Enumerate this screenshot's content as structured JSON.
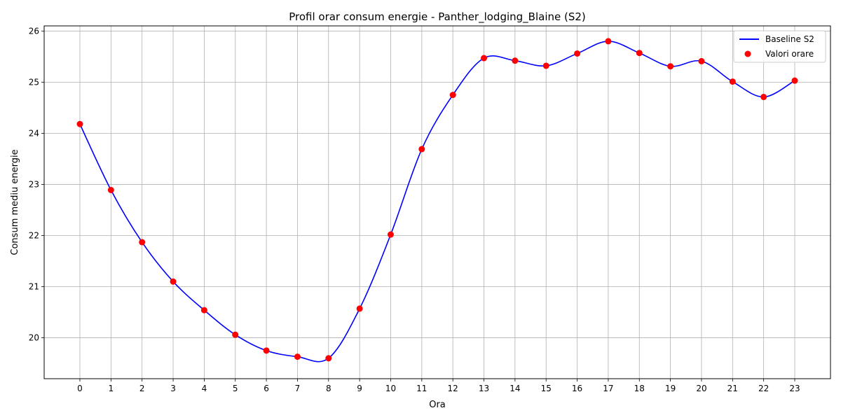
{
  "chart_data": {
    "type": "line",
    "title": "Profil orar consum energie - Panther_lodging_Blaine (S2)",
    "xlabel": "Ora",
    "ylabel": "Consum mediu energie",
    "x": [
      0,
      1,
      2,
      3,
      4,
      5,
      6,
      7,
      8,
      9,
      10,
      11,
      12,
      13,
      14,
      15,
      16,
      17,
      18,
      19,
      20,
      21,
      22,
      23
    ],
    "xlim": [
      -1.15,
      24.15
    ],
    "ylim": [
      19.2,
      26.1
    ],
    "yticks": [
      20,
      21,
      22,
      23,
      24,
      25,
      26
    ],
    "grid": true,
    "legend_position": "top-right",
    "series": [
      {
        "name": "Baseline S2",
        "kind": "line",
        "color": "#0000ff",
        "values": [
          24.18,
          22.89,
          21.87,
          21.1,
          20.54,
          20.06,
          19.75,
          19.63,
          19.6,
          20.57,
          22.02,
          23.69,
          24.75,
          25.47,
          25.42,
          25.32,
          25.56,
          25.8,
          25.57,
          25.31,
          25.41,
          25.01,
          24.71,
          25.03
        ]
      },
      {
        "name": "Valori orare",
        "kind": "scatter",
        "color": "#ff0000",
        "values": [
          24.18,
          22.89,
          21.87,
          21.1,
          20.54,
          20.06,
          19.75,
          19.63,
          19.6,
          20.57,
          22.02,
          23.69,
          24.75,
          25.47,
          25.42,
          25.32,
          25.56,
          25.8,
          25.57,
          25.31,
          25.41,
          25.01,
          24.71,
          25.03
        ]
      }
    ]
  }
}
